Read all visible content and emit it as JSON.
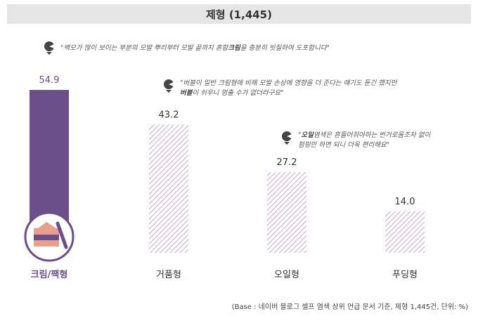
{
  "title": "제형 (1,445)",
  "quotes": [
    {
      "segments": [
        {
          "text": "\"백모가 많이 보이는 부분의 모발 뿌리부터 모발 끝까지 혼합",
          "bold": false
        },
        {
          "text": "크림",
          "bold": true
        },
        {
          "text": "을 충분히 빗질하여 도포합니다\"",
          "bold": false
        }
      ]
    },
    {
      "lines": [
        [
          {
            "text": "\"버블이 일반 크림형에 비해 모발 손상에 영향을 더 준다는 얘기도 듣긴 했지만",
            "bold": false
          }
        ],
        [
          {
            "text": "버블",
            "bold": true
          },
          {
            "text": "이 쉬우니 멈출 수가 없더라구요\"",
            "bold": false
          }
        ]
      ]
    },
    {
      "lines": [
        [
          {
            "text": "\"",
            "bold": false
          },
          {
            "text": "오일",
            "bold": true
          },
          {
            "text": "염색은 흔들어줘야하는 번거로움조차 없이",
            "bold": false
          }
        ],
        [
          {
            "text": "펌핑만 하면 되니 더욱 편리해요\"",
            "bold": false
          }
        ]
      ]
    }
  ],
  "chart_data": {
    "type": "bar",
    "categories": [
      "크림/팩형",
      "거품형",
      "오일형",
      "푸딩형"
    ],
    "values": [
      54.9,
      43.2,
      27.2,
      14.0
    ],
    "value_labels": [
      "54.9",
      "43.2",
      "27.2",
      "14.0"
    ],
    "highlight_index": 0,
    "colors": {
      "highlight": "#6b4f8a",
      "hatch": "#c8aac8",
      "highlight_label": "#6b4f8a"
    },
    "ylim": [
      0,
      54.9
    ],
    "icon": "cream-jar-icon"
  },
  "base_note": "(Base : 네이버 블로그 셀프 염색 상위 언급 문서 기준, 제형 1,445건, 단위: %)"
}
